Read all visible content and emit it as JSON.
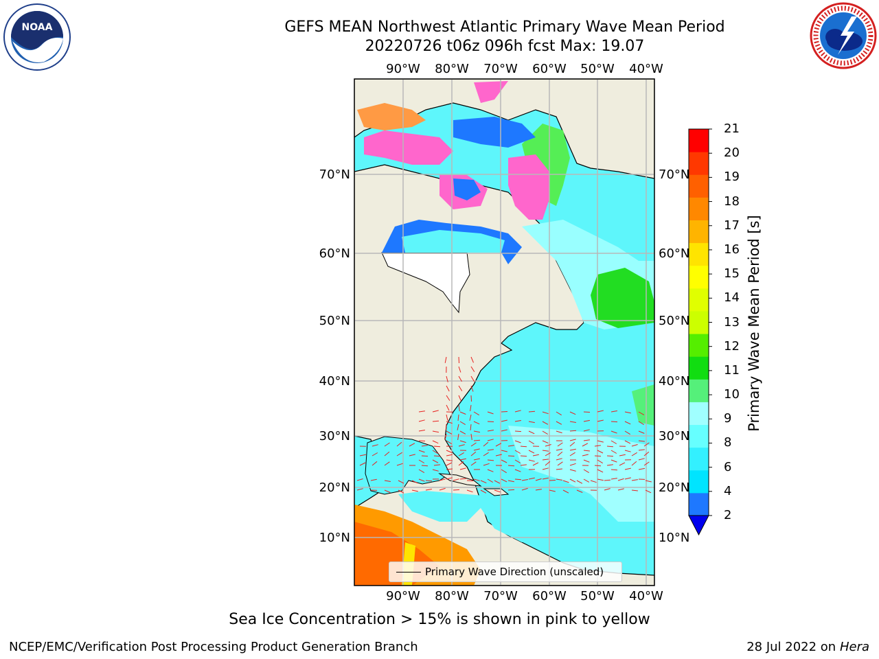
{
  "header": {
    "title_line1": "GEFS MEAN Northwest Atlantic Primary Wave Mean Period",
    "title_line2": "20220726 t06z 096h fcst   Max: 19.07"
  },
  "logos": {
    "noaa_text": "NOAA",
    "nws_text": "NATIONAL WEATHER SERVICE"
  },
  "map": {
    "lon_labels": [
      "90°W",
      "80°W",
      "70°W",
      "60°W",
      "50°W",
      "40°W"
    ],
    "lat_labels": [
      "70°N",
      "60°N",
      "50°N",
      "40°N",
      "30°N",
      "20°N",
      "10°N"
    ],
    "legend_label": "Primary Wave Direction (unscaled)",
    "colors": {
      "land": "#efedde",
      "border": "#000000",
      "arrows": "#e8201e",
      "grid": "#b8b8b8"
    }
  },
  "colorbar": {
    "title": "Primary Wave Mean Period [s]",
    "tick_labels": [
      "21",
      "20",
      "19",
      "18",
      "17",
      "16",
      "15",
      "14",
      "13",
      "12",
      "11",
      "10",
      "9",
      "8",
      "6",
      "4",
      "2"
    ],
    "colors": [
      "#0000ee",
      "#1e78ff",
      "#00e4ff",
      "#33f0ff",
      "#66ffff",
      "#a0ffff",
      "#55f07a",
      "#11dd11",
      "#55ee00",
      "#ccff00",
      "#e0ff00",
      "#ffff00",
      "#ffe400",
      "#ffb400",
      "#ff8800",
      "#ff6000",
      "#ff3800",
      "#ff0000"
    ]
  },
  "footer": {
    "note": "Sea Ice Concentration > 15% is shown in pink to yellow",
    "credit": "NCEP/EMC/Verification Post Processing Product Generation Branch",
    "date_text": "28 Jul 2022 on",
    "machine": "Hera"
  }
}
